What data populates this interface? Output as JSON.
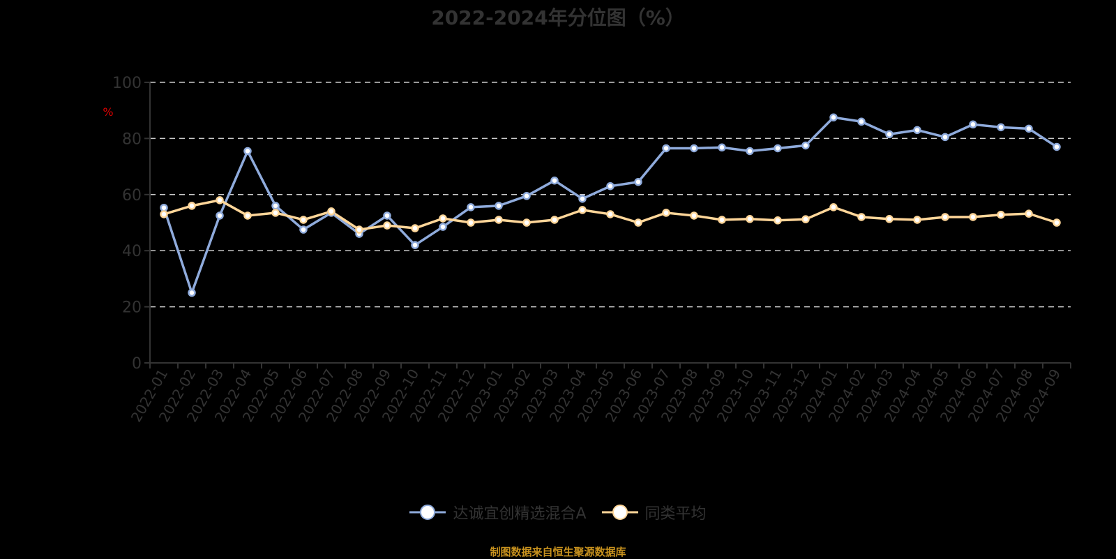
{
  "title": "2022-2024年分位图（%）",
  "y_unit": "%",
  "source": "制图数据来自恒生聚源数据库",
  "colors": {
    "series1": "#8fabdc",
    "series2": "#ffd699",
    "unit": "#e00000",
    "axis": "#333333",
    "grid": "#cccccc",
    "source": "#c8921e"
  },
  "chart_data": {
    "type": "line",
    "title": "2022-2024年分位图（%）",
    "xlabel": "",
    "ylabel": "%",
    "ylim": [
      0,
      100
    ],
    "yticks": [
      0,
      20,
      40,
      60,
      80,
      100
    ],
    "grid": "horizontal dashed",
    "legend_position": "bottom",
    "x": [
      "2022-01",
      "2022-02",
      "2022-03",
      "2022-04",
      "2022-05",
      "2022-06",
      "2022-07",
      "2022-08",
      "2022-09",
      "2022-10",
      "2022-11",
      "2022-12",
      "2023-01",
      "2023-02",
      "2023-03",
      "2023-04",
      "2023-05",
      "2023-06",
      "2023-07",
      "2023-08",
      "2023-09",
      "2023-10",
      "2023-11",
      "2023-12",
      "2024-01",
      "2024-02",
      "2024-03",
      "2024-04",
      "2024-05",
      "2024-06",
      "2024-07",
      "2024-08",
      "2024-09"
    ],
    "series": [
      {
        "name": "达诚宜创精选混合A",
        "color": "#8fabdc",
        "values": [
          55.3,
          25,
          52.5,
          75.5,
          56,
          47.5,
          53.5,
          46,
          52.5,
          42,
          48.5,
          55.5,
          56,
          59.5,
          65,
          58.5,
          63,
          64.5,
          76.5,
          76.5,
          76.8,
          75.5,
          76.5,
          77.5,
          87.5,
          86,
          81.5,
          83,
          80.5,
          85,
          84,
          83.5,
          77
        ]
      },
      {
        "name": "同类平均",
        "color": "#ffd699",
        "values": [
          53,
          56,
          58,
          52.5,
          53.5,
          51,
          54,
          47.5,
          49,
          48,
          51.5,
          50,
          51,
          50,
          51,
          54.5,
          53,
          50,
          53.5,
          52.5,
          51,
          51.3,
          50.8,
          51.2,
          55.5,
          52,
          51.3,
          51,
          52,
          52,
          52.8,
          53.2,
          50
        ]
      }
    ]
  }
}
